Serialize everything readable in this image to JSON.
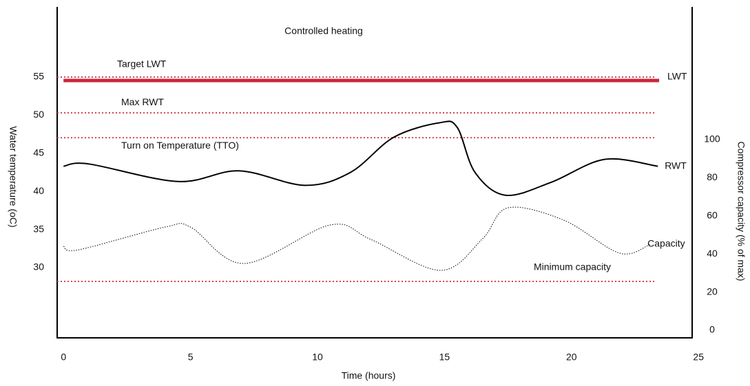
{
  "chart_data": {
    "type": "line",
    "title": "Controlled heating",
    "x_label": "Time (hours)",
    "y_label": "Water temperature (oC)",
    "y2_label": "Compressor capacity (% of max)",
    "xlim": [
      -0.25,
      24.75
    ],
    "xticks": [
      0,
      5,
      10,
      15,
      20,
      25
    ],
    "ylim": [
      20.8,
      64.2
    ],
    "yticks": [
      30,
      35,
      40,
      45,
      50,
      55
    ],
    "y2lim": [
      -3.6,
      170
    ],
    "y2ticks": [
      0,
      20,
      40,
      60,
      80,
      100
    ],
    "series": [
      {
        "name": "LWT",
        "color": "#c8283c",
        "style": "solid",
        "width": 5,
        "x": [
          0,
          23.45
        ],
        "values": [
          54.55,
          54.55
        ]
      },
      {
        "name": "RWT",
        "color": "#000000",
        "style": "solid",
        "width": 2,
        "x": [
          0,
          1,
          4.5,
          6.9,
          9.5,
          11.3,
          13,
          14.8,
          15.5,
          16.2,
          17.4,
          19.2,
          21.3,
          23.4
        ],
        "values": [
          43.3,
          43.6,
          41.3,
          42.7,
          40.8,
          42.5,
          47.1,
          49,
          48.4,
          42.5,
          39.5,
          41.2,
          44.2,
          43.3
        ]
      },
      {
        "name": "Capacity",
        "color": "#000000",
        "style": "dotted",
        "width": 1,
        "axis": "y2",
        "x": [
          0,
          0.6,
          4,
          5,
          7.1,
          10.5,
          12.1,
          14.85,
          16.5,
          17.5,
          19.7,
          21.9,
          23.1
        ],
        "values": [
          44.4,
          42.6,
          54.5,
          54.5,
          35.4,
          55.6,
          48,
          31.8,
          48.4,
          64.6,
          58.1,
          40.8,
          45.5
        ]
      }
    ],
    "reference_lines": [
      {
        "label": "Target LWT",
        "value": 55,
        "color": "#d9434f"
      },
      {
        "label": "Max RWT",
        "value": 50.3,
        "color": "#d9434f"
      },
      {
        "label": "Turn on Temperature (TTO)",
        "value": 47.05,
        "color": "#d9434f"
      },
      {
        "label": "Minimum capacity",
        "value": 26,
        "axis": "y2",
        "color": "#d9434f"
      }
    ]
  }
}
